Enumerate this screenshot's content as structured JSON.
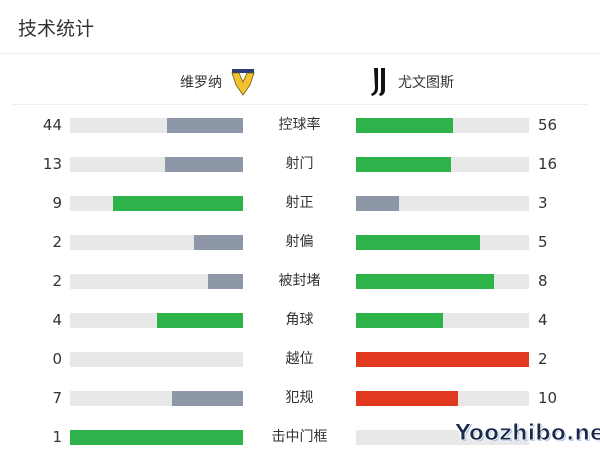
{
  "title": "技术统计",
  "home": {
    "name": "维罗纳",
    "logo": "hellas-verona-logo"
  },
  "away": {
    "name": "尤文图斯",
    "logo": "juventus-logo"
  },
  "colors": {
    "green": "#2db34a",
    "grey": "#8e97a8",
    "red": "#e0391f",
    "track": "#e8e8e8"
  },
  "stats": [
    {
      "label": "控球率",
      "home": "44",
      "away": "56",
      "home_color": "grey",
      "away_color": "green"
    },
    {
      "label": "射门",
      "home": "13",
      "away": "16",
      "home_color": "grey",
      "away_color": "green"
    },
    {
      "label": "射正",
      "home": "9",
      "away": "3",
      "home_color": "green",
      "away_color": "grey"
    },
    {
      "label": "射偏",
      "home": "2",
      "away": "5",
      "home_color": "grey",
      "away_color": "green"
    },
    {
      "label": "被封堵",
      "home": "2",
      "away": "8",
      "home_color": "grey",
      "away_color": "green"
    },
    {
      "label": "角球",
      "home": "4",
      "away": "4",
      "home_color": "green",
      "away_color": "green"
    },
    {
      "label": "越位",
      "home": "0",
      "away": "2",
      "home_color": "grey",
      "away_color": "red"
    },
    {
      "label": "犯规",
      "home": "7",
      "away": "10",
      "home_color": "grey",
      "away_color": "red"
    },
    {
      "label": "击中门框",
      "home": "1",
      "away": "",
      "home_color": "green",
      "away_color": "grey"
    }
  ],
  "watermark": "Yoozhibo.net"
}
